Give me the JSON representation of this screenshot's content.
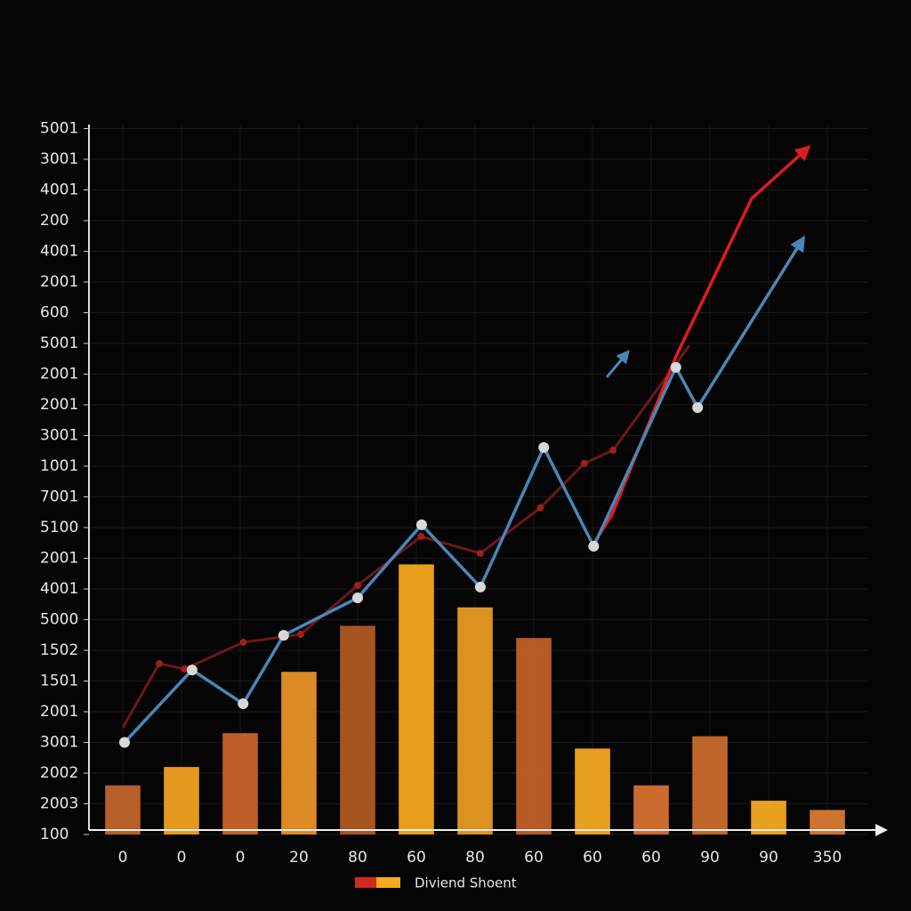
{
  "chart_data": {
    "type": "bar_line",
    "categories": [
      "0",
      "0",
      "0",
      "20",
      "80",
      "60",
      "80",
      "60",
      "60",
      "60",
      "90",
      "90",
      "350"
    ],
    "values": [
      1.6,
      2.2,
      3.3,
      5.3,
      6.8,
      8.8,
      7.4,
      6.4,
      2.8,
      1.6,
      3.2,
      1.1,
      0.8
    ],
    "colors": [
      "#c0642a",
      "#f0a020",
      "#c8642a",
      "#e89028",
      "#b05a22",
      "#f5a81e",
      "#e89a22",
      "#c06028",
      "#f5a820",
      "#d87030",
      "#c86c2c",
      "#f5a820",
      "#d87832"
    ],
    "xlim": [
      -0.5,
      12.5
    ],
    "ylim": [
      0,
      23
    ],
    "yticks": [
      {
        "value": 0,
        "label": "100"
      },
      {
        "value": 1,
        "label": "2003"
      },
      {
        "value": 2,
        "label": "2002"
      },
      {
        "value": 3,
        "label": "3001"
      },
      {
        "value": 4,
        "label": "2001"
      },
      {
        "value": 5,
        "label": "1501"
      },
      {
        "value": 6,
        "label": "1502"
      },
      {
        "value": 7,
        "label": "5000"
      },
      {
        "value": 8,
        "label": "4001"
      },
      {
        "value": 9,
        "label": "2001"
      },
      {
        "value": 10,
        "label": "5100"
      },
      {
        "value": 11,
        "label": "7001"
      },
      {
        "value": 12,
        "label": "1001"
      },
      {
        "value": 13,
        "label": "3001"
      },
      {
        "value": 14,
        "label": "2001"
      },
      {
        "value": 15,
        "label": "2001"
      },
      {
        "value": 16,
        "label": "5001"
      },
      {
        "value": 17,
        "label": "600"
      },
      {
        "value": 18,
        "label": "2001"
      },
      {
        "value": 19,
        "label": "4001"
      },
      {
        "value": 20,
        "label": "200"
      },
      {
        "value": 21,
        "label": "4001"
      },
      {
        "value": 22,
        "label": "3001"
      },
      {
        "value": 23,
        "label": "5001"
      }
    ],
    "grid": true,
    "series": [
      {
        "color": "#8a1c1c",
        "x": [
          0,
          0.62,
          1.05,
          2.05,
          3.03,
          4.0,
          5.08,
          6.09,
          7.11,
          7.86,
          8.35,
          9.65
        ],
        "values": [
          3.48,
          5.57,
          5.39,
          6.26,
          6.52,
          8.12,
          9.71,
          9.16,
          10.64,
          12.09,
          12.52,
          15.94
        ]
      },
      {
        "color": "#e01c1c",
        "x": [
          8.02,
          8.33,
          9.42,
          10.71,
          11.62
        ],
        "values": [
          9.48,
          10.41,
          15.57,
          20.72,
          22.29
        ]
      },
      {
        "color": "#4a86b8",
        "x": [
          0.03,
          1.18,
          2.05,
          2.74,
          4.0,
          5.09,
          6.09,
          7.17,
          8.02,
          9.42,
          9.79,
          11.55
        ],
        "values": [
          3.0,
          5.36,
          4.26,
          6.49,
          7.71,
          10.09,
          8.06,
          12.61,
          9.39,
          15.22,
          13.91,
          19.3
        ]
      }
    ],
    "legend": {
      "label": "Diviend Shoent"
    }
  }
}
